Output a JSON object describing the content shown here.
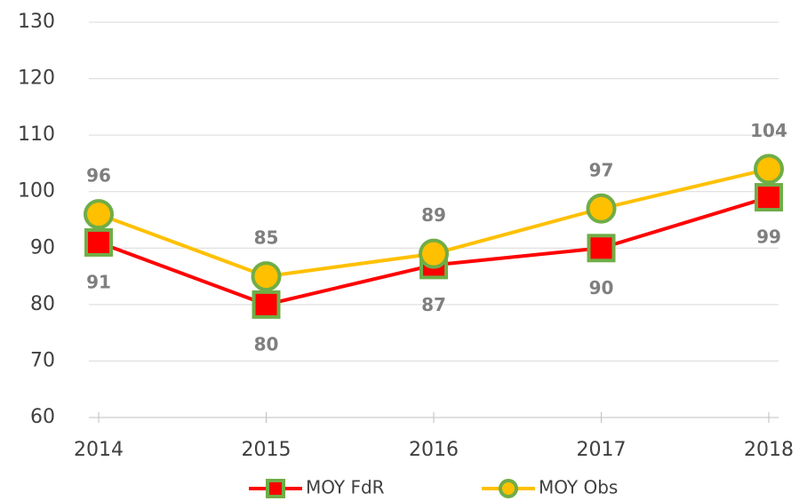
{
  "chart_data": {
    "type": "line",
    "categories": [
      "2014",
      "2015",
      "2016",
      "2017",
      "2018"
    ],
    "series": [
      {
        "name": "MOY FdR",
        "color": "#ff0000",
        "marker": "square",
        "marker_fill": "#ff0000",
        "marker_edge": "#70ad47",
        "values": [
          91,
          80,
          87,
          90,
          99
        ]
      },
      {
        "name": "MOY Obs",
        "color": "#ffc000",
        "marker": "circle",
        "marker_fill": "#ffc000",
        "marker_edge": "#70ad47",
        "values": [
          96,
          85,
          89,
          97,
          104
        ]
      }
    ],
    "ylim": [
      60,
      130
    ],
    "yticks": [
      60,
      70,
      80,
      90,
      100,
      110,
      120,
      130
    ],
    "grid": true,
    "legend": "bottom"
  }
}
